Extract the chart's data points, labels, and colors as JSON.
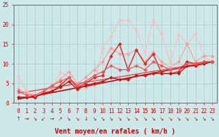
{
  "title": "",
  "xlabel": "Vent moyen/en rafales ( km/h )",
  "ylabel": "",
  "bg_color": "#cce8e8",
  "grid_color": "#aacccc",
  "xlim": [
    -0.5,
    23.5
  ],
  "ylim": [
    0,
    25
  ],
  "xticks": [
    0,
    1,
    2,
    3,
    4,
    5,
    6,
    7,
    8,
    9,
    10,
    11,
    12,
    13,
    14,
    15,
    16,
    17,
    18,
    19,
    20,
    21,
    22,
    23
  ],
  "yticks": [
    0,
    5,
    10,
    15,
    20,
    25
  ],
  "series": [
    {
      "x": [
        0,
        1,
        2,
        3,
        4,
        5,
        6,
        7,
        8,
        9,
        10,
        11,
        12,
        13,
        14,
        15,
        16,
        17,
        18,
        19,
        20,
        21,
        22,
        23
      ],
      "y": [
        6.8,
        3.0,
        2.0,
        2.8,
        3.5,
        8.0,
        6.5,
        3.2,
        3.8,
        4.5,
        14.0,
        17.0,
        21.0,
        21.0,
        18.5,
        13.0,
        21.0,
        17.5,
        10.5,
        17.5,
        15.0,
        17.5,
        12.0,
        10.5
      ],
      "color": "#ffbbbb",
      "marker": "D",
      "markersize": 2.5,
      "linewidth": 0.8,
      "alpha": 1.0
    },
    {
      "x": [
        0,
        1,
        2,
        3,
        4,
        5,
        6,
        7,
        8,
        9,
        10,
        11,
        12,
        13,
        14,
        15,
        16,
        17,
        18,
        19,
        20,
        21,
        22,
        23
      ],
      "y": [
        3.5,
        2.5,
        2.0,
        2.5,
        4.5,
        6.0,
        8.0,
        5.0,
        6.5,
        8.5,
        10.5,
        14.0,
        12.5,
        12.5,
        13.5,
        10.5,
        13.0,
        10.5,
        9.0,
        10.5,
        15.0,
        10.5,
        12.0,
        12.0
      ],
      "color": "#ff9999",
      "marker": "D",
      "markersize": 2.5,
      "linewidth": 0.8,
      "alpha": 1.0
    },
    {
      "x": [
        0,
        1,
        2,
        3,
        4,
        5,
        6,
        7,
        8,
        9,
        10,
        11,
        12,
        13,
        14,
        15,
        16,
        17,
        18,
        19,
        20,
        21,
        22,
        23
      ],
      "y": [
        1.5,
        1.5,
        1.5,
        2.5,
        3.0,
        4.5,
        6.5,
        4.0,
        5.0,
        6.5,
        7.0,
        12.0,
        15.0,
        8.5,
        13.5,
        10.0,
        12.5,
        7.5,
        7.5,
        8.0,
        10.5,
        10.0,
        10.5,
        10.5
      ],
      "color": "#dd2222",
      "marker": "D",
      "markersize": 2.5,
      "linewidth": 1.0,
      "alpha": 1.0
    },
    {
      "x": [
        0,
        1,
        2,
        3,
        4,
        5,
        6,
        7,
        8,
        9,
        10,
        11,
        12,
        13,
        14,
        15,
        16,
        17,
        18,
        19,
        20,
        21,
        22,
        23
      ],
      "y": [
        1.5,
        1.5,
        1.5,
        2.5,
        3.0,
        4.0,
        5.5,
        3.5,
        4.5,
        5.0,
        5.5,
        6.5,
        6.0,
        6.0,
        7.0,
        7.0,
        7.5,
        7.5,
        7.5,
        7.5,
        9.5,
        9.5,
        10.0,
        10.5
      ],
      "color": "#cc1111",
      "marker": "D",
      "markersize": 2.5,
      "linewidth": 1.0,
      "alpha": 1.0
    },
    {
      "x": [
        0,
        1,
        2,
        3,
        4,
        5,
        6,
        7,
        8,
        9,
        10,
        11,
        12,
        13,
        14,
        15,
        16,
        17,
        18,
        19,
        20,
        21,
        22,
        23
      ],
      "y": [
        3.0,
        2.0,
        2.0,
        3.0,
        4.5,
        5.5,
        6.5,
        4.5,
        5.5,
        7.0,
        8.0,
        9.5,
        8.5,
        8.5,
        9.5,
        8.5,
        10.5,
        9.5,
        8.5,
        9.0,
        10.0,
        10.0,
        10.5,
        10.5
      ],
      "color": "#ee5555",
      "marker": "D",
      "markersize": 2.5,
      "linewidth": 0.9,
      "alpha": 1.0
    },
    {
      "x": [
        0,
        23
      ],
      "y": [
        1.0,
        10.5
      ],
      "color": "#cc0000",
      "marker": null,
      "linewidth": 1.2,
      "alpha": 1.0
    },
    {
      "x": [
        0,
        23
      ],
      "y": [
        2.5,
        10.5
      ],
      "color": "#ee4444",
      "marker": null,
      "linewidth": 1.0,
      "alpha": 1.0
    }
  ],
  "wind_symbols": "→↘↓→↗↘↘↓↘↘↘↘↘↘↘↘↘↘↘↘↘↘↘↘",
  "tick_color": "#cc0000",
  "tick_fontsize": 5.5,
  "xlabel_fontsize": 7,
  "xlabel_color": "#cc0000"
}
